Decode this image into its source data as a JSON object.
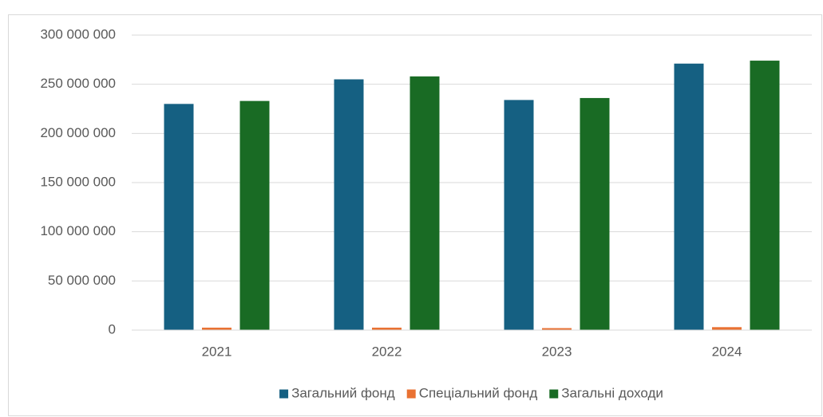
{
  "chart_data": {
    "type": "bar",
    "categories": [
      "2021",
      "2022",
      "2023",
      "2024"
    ],
    "series": [
      {
        "name": "Загальний фонд",
        "color": "#156082",
        "values": [
          230000000,
          255000000,
          234000000,
          271000000
        ]
      },
      {
        "name": "Спеціальний фонд",
        "color": "#e97132",
        "values": [
          2500000,
          2500000,
          2000000,
          3000000
        ]
      },
      {
        "name": "Загальні доходи",
        "color": "#196b24",
        "values": [
          233000000,
          258000000,
          236000000,
          274000000
        ]
      }
    ],
    "ylim": [
      0,
      300000000
    ],
    "yticks": [
      0,
      {
        "value": 50000000,
        "label": "50 000 000"
      },
      {
        "value": 100000000,
        "label": "100 000 000"
      },
      {
        "value": 150000000,
        "label": "150 000 000"
      },
      {
        "value": 200000000,
        "label": "200 000 000"
      },
      {
        "value": 250000000,
        "label": "250 000 000"
      },
      {
        "value": 300000000,
        "label": "300 000 000"
      }
    ],
    "grid": true,
    "legend": "bottom"
  }
}
